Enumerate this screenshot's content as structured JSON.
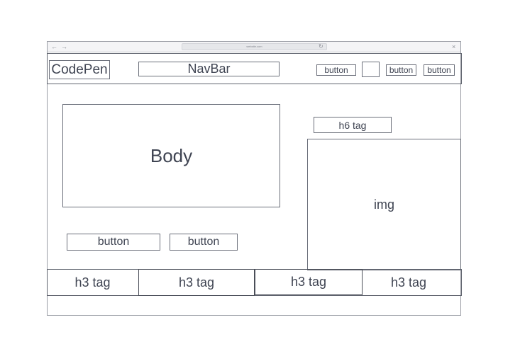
{
  "browser": {
    "url_text": "website.com",
    "back_icon": "arrow-left-icon",
    "forward_icon": "arrow-right-icon",
    "reload_icon": "reload-icon",
    "close_icon": "close-icon"
  },
  "header": {
    "logo": "CodePen",
    "navbar": "NavBar",
    "buttons": [
      "button",
      "button",
      "button"
    ]
  },
  "main": {
    "body_label": "Body",
    "buttons": [
      "button",
      "button"
    ]
  },
  "aside": {
    "heading": "h6 tag",
    "image_label": "img"
  },
  "footer": {
    "tags": [
      "h3 tag",
      "h3 tag",
      "h3 tag",
      "h3 tag"
    ]
  },
  "colors": {
    "stroke": "#5f636e",
    "text": "#3f4452",
    "chrome": "#f4f4f6"
  }
}
